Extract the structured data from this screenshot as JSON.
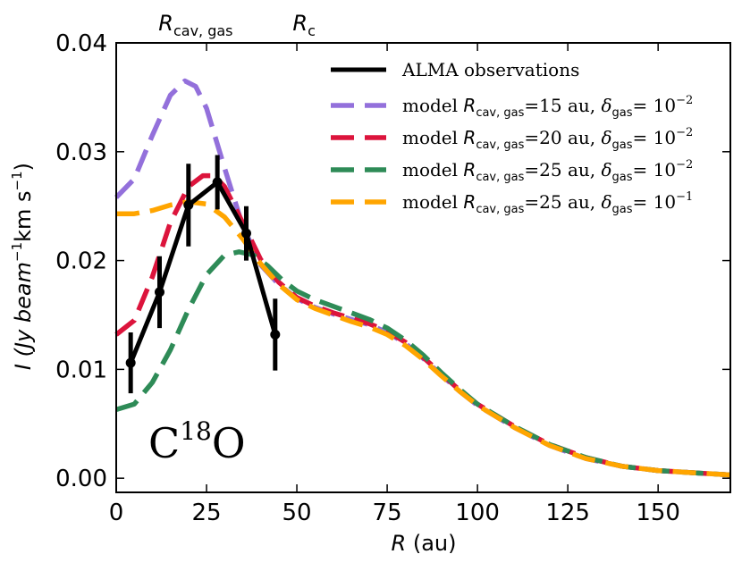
{
  "chart_data": {
    "type": "line",
    "molecule": {
      "base": "C",
      "sup": "18",
      "rest": "O"
    },
    "xlabel": {
      "main": "R",
      "unit": " (au)"
    },
    "ylabel": {
      "prefix": "I (Jy beam",
      "sup1": "−1",
      "mid": "km s",
      "sup2": "−1",
      "suffix": ")"
    },
    "xlim": [
      0,
      170
    ],
    "ylim": [
      -0.0013,
      0.04
    ],
    "xticks": [
      0,
      25,
      50,
      75,
      100,
      125,
      150
    ],
    "yticks": [
      0.0,
      0.01,
      0.02,
      0.03,
      0.04
    ],
    "ytick_labels": [
      "0.00",
      "0.01",
      "0.02",
      "0.03",
      "0.04"
    ],
    "top_markers": [
      {
        "x": 22,
        "text_main": "R",
        "text_sub": "cav, gas"
      },
      {
        "x": 52,
        "text_main": "R",
        "text_sub": "c"
      }
    ],
    "observations": {
      "name": "ALMA observations",
      "color": "#000000",
      "points": [
        {
          "x": 4,
          "y": 0.0106,
          "err": 0.0028
        },
        {
          "x": 12,
          "y": 0.0171,
          "err": 0.0033
        },
        {
          "x": 20,
          "y": 0.0251,
          "err": 0.0038
        },
        {
          "x": 28,
          "y": 0.0272,
          "err": 0.0025
        },
        {
          "x": 36,
          "y": 0.0225,
          "err": 0.0025
        },
        {
          "x": 44,
          "y": 0.0132,
          "err": 0.0033
        }
      ]
    },
    "series": [
      {
        "name_parts": {
          "pre": "model ",
          "R": "R",
          "Rsub": "cav, gas",
          "eq": "=15 au, ",
          "d": "δ",
          "dsub": "gas",
          "eq2": "= 10",
          "exp": "−2"
        },
        "color": "#9370DB",
        "x": [
          0,
          5,
          10,
          15,
          19,
          22,
          25,
          30,
          35,
          40,
          45,
          50,
          55,
          60,
          65,
          70,
          75,
          80,
          85,
          90,
          95,
          100,
          110,
          120,
          130,
          140,
          150,
          160,
          170
        ],
        "values": [
          0.0258,
          0.0275,
          0.0315,
          0.0352,
          0.0365,
          0.036,
          0.034,
          0.0285,
          0.0232,
          0.0196,
          0.0178,
          0.0165,
          0.0157,
          0.0151,
          0.0146,
          0.0141,
          0.0134,
          0.0124,
          0.011,
          0.0095,
          0.008,
          0.0067,
          0.0047,
          0.003,
          0.0018,
          0.0011,
          0.0007,
          0.0005,
          0.0003
        ]
      },
      {
        "name_parts": {
          "pre": "model ",
          "R": "R",
          "Rsub": "cav, gas",
          "eq": "=20 au, ",
          "d": "δ",
          "dsub": "gas",
          "eq2": "= 10",
          "exp": "−2"
        },
        "color": "#DC143C",
        "x": [
          0,
          5,
          10,
          15,
          20,
          24,
          27,
          30,
          35,
          40,
          45,
          50,
          55,
          60,
          65,
          70,
          75,
          80,
          85,
          90,
          95,
          100,
          110,
          120,
          130,
          140,
          150,
          160,
          170
        ],
        "values": [
          0.0132,
          0.0145,
          0.0185,
          0.0235,
          0.0268,
          0.0278,
          0.0278,
          0.0268,
          0.0235,
          0.0201,
          0.018,
          0.0166,
          0.0158,
          0.0152,
          0.0147,
          0.0142,
          0.0135,
          0.0125,
          0.0111,
          0.0096,
          0.0081,
          0.0068,
          0.0048,
          0.0031,
          0.0019,
          0.0011,
          0.0007,
          0.0005,
          0.0003
        ]
      },
      {
        "name_parts": {
          "pre": "model ",
          "R": "R",
          "Rsub": "cav, gas",
          "eq": "=25 au, ",
          "d": "δ",
          "dsub": "gas",
          "eq2": "= 10",
          "exp": "−2"
        },
        "color": "#2E8B57",
        "x": [
          0,
          5,
          10,
          15,
          20,
          25,
          30,
          34,
          38,
          42,
          46,
          50,
          55,
          60,
          65,
          70,
          75,
          80,
          85,
          90,
          95,
          100,
          110,
          120,
          130,
          140,
          150,
          160,
          170
        ],
        "values": [
          0.0063,
          0.0068,
          0.0088,
          0.0118,
          0.0155,
          0.0187,
          0.0205,
          0.0208,
          0.0205,
          0.0195,
          0.0182,
          0.0172,
          0.0164,
          0.0158,
          0.0152,
          0.0146,
          0.0138,
          0.0127,
          0.0113,
          0.0097,
          0.0082,
          0.0068,
          0.0048,
          0.0031,
          0.0019,
          0.0011,
          0.0007,
          0.0005,
          0.0003
        ]
      },
      {
        "name_parts": {
          "pre": "model ",
          "R": "R",
          "Rsub": "cav, gas",
          "eq": "=25 au, ",
          "d": "δ",
          "dsub": "gas",
          "eq2": "= 10",
          "exp": "−1"
        },
        "color": "#FFA500",
        "x": [
          0,
          5,
          10,
          15,
          20,
          25,
          30,
          35,
          40,
          45,
          50,
          55,
          60,
          65,
          70,
          75,
          80,
          85,
          90,
          95,
          100,
          110,
          120,
          130,
          140,
          150,
          160,
          170
        ],
        "values": [
          0.0243,
          0.0243,
          0.0246,
          0.0251,
          0.0254,
          0.0252,
          0.024,
          0.022,
          0.0197,
          0.0178,
          0.0164,
          0.0156,
          0.015,
          0.0144,
          0.0139,
          0.0132,
          0.0122,
          0.0109,
          0.0094,
          0.008,
          0.0067,
          0.0047,
          0.003,
          0.0018,
          0.0011,
          0.0007,
          0.0005,
          0.0003
        ]
      }
    ]
  }
}
